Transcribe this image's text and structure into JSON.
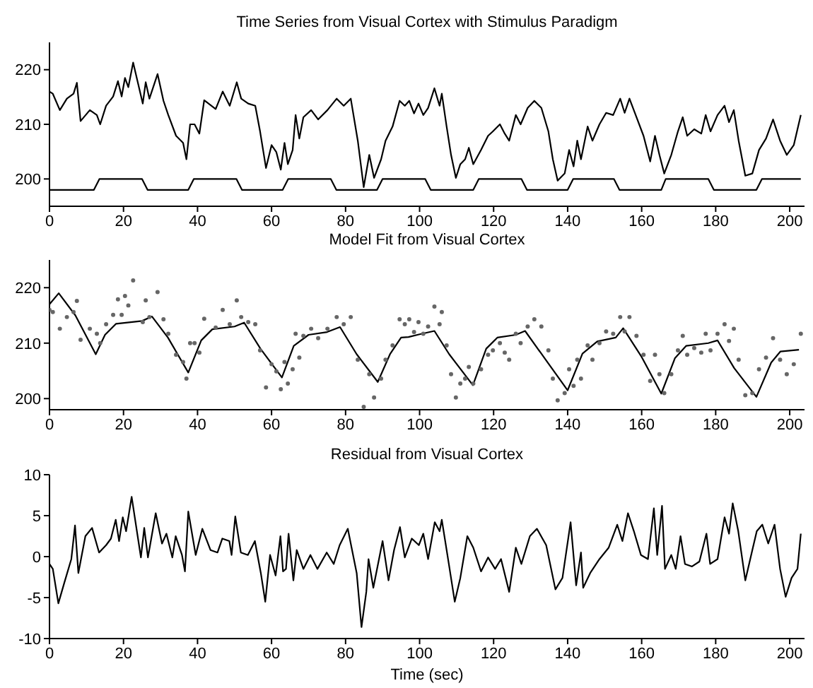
{
  "chart_data": [
    {
      "type": "line",
      "title": "Time Series from Visual Cortex with Stimulus Paradigm",
      "xlim": [
        0,
        204
      ],
      "xticks": [
        0,
        20,
        40,
        60,
        80,
        100,
        120,
        140,
        160,
        180,
        200
      ],
      "ylim": [
        195,
        225
      ],
      "yticks": [
        200,
        210,
        220
      ],
      "grid": false,
      "marker": "none",
      "line_style": "solid",
      "series": [
        {
          "color": "#000000",
          "x": [
            0,
            0.9,
            2.8,
            4.7,
            6.5,
            7.4,
            8.4,
            10.9,
            12.8,
            13.7,
            15.3,
            17.2,
            18.5,
            19.5,
            20.4,
            21.3,
            22.6,
            25.2,
            26,
            27,
            29.2,
            30.8,
            32.1,
            34.2,
            36.1,
            37,
            38,
            39.2,
            40.5,
            41.8,
            44.9,
            46.8,
            48.7,
            50.6,
            51.8,
            53.7,
            55.6,
            56.9,
            58.5,
            60,
            61.3,
            62.5,
            63.5,
            64.4,
            65.7,
            66.5,
            67.5,
            68.6,
            70.7,
            72.6,
            75.1,
            77.6,
            79.5,
            81.4,
            83.3,
            84.9,
            86.4,
            87.7,
            89.6,
            90.8,
            92.7,
            94.6,
            96,
            97.2,
            98.5,
            99.7,
            101,
            102.3,
            104,
            105.4,
            106,
            107.3,
            108.5,
            109.8,
            111,
            112.3,
            113.3,
            114.5,
            116.6,
            118.5,
            119.8,
            121.7,
            123,
            124.2,
            126,
            127.3,
            129.2,
            131,
            132.9,
            134.8,
            136,
            137.3,
            139.2,
            140.4,
            141.6,
            142.6,
            143.6,
            145.4,
            146.7,
            148.6,
            150.4,
            152.3,
            154.2,
            155.4,
            156.7,
            158.6,
            160.5,
            162.3,
            163.6,
            164.8,
            166.1,
            168,
            169.8,
            171.1,
            172.3,
            174.2,
            176.1,
            177.3,
            178.6,
            180.5,
            182.4,
            183.6,
            184.9,
            186.2,
            188,
            189.9,
            191.7,
            193.6,
            195.5,
            197.4,
            199.2,
            201.1,
            203
          ],
          "values": [
            216,
            215.6,
            212.6,
            214.7,
            215.6,
            217.6,
            210.6,
            212.6,
            211.7,
            210,
            213.4,
            215.1,
            217.9,
            215.1,
            218.5,
            216.8,
            221.3,
            213.8,
            217.7,
            214.7,
            219.2,
            214.3,
            211.7,
            207.9,
            206.6,
            203.6,
            210,
            210,
            208.3,
            214.4,
            212.8,
            216,
            213.4,
            217.7,
            214.7,
            213.8,
            213.4,
            208.7,
            202,
            206.2,
            204.9,
            201.7,
            206.6,
            202.7,
            205.3,
            211.7,
            207.4,
            211.3,
            212.6,
            210.9,
            212.6,
            214.7,
            213.4,
            214.7,
            207,
            198.5,
            204.4,
            200.2,
            203.6,
            207,
            209.6,
            214.3,
            213.4,
            214.3,
            212,
            213.8,
            211.7,
            213,
            216.6,
            213.4,
            215.6,
            209.6,
            204.4,
            200.2,
            202.7,
            203.6,
            205.7,
            202.7,
            205.3,
            207.9,
            208.7,
            210,
            208.3,
            207,
            211.7,
            210,
            213,
            214.3,
            213,
            208.7,
            203.6,
            199.7,
            201,
            205.3,
            202.3,
            207,
            203.6,
            209.6,
            207,
            210,
            212.1,
            211.7,
            214.7,
            212.1,
            214.7,
            211.3,
            207.9,
            203.2,
            207.9,
            204.4,
            201,
            204.4,
            208.7,
            211.3,
            207.9,
            209.1,
            208.3,
            211.7,
            208.7,
            211.7,
            213.4,
            210.4,
            212.6,
            207,
            200.6,
            201,
            205.3,
            207.4,
            210.9,
            207,
            204.4,
            206.2,
            211.7
          ]
        },
        {
          "color": "#000000",
          "x": [
            0,
            12,
            13.5,
            25,
            26.5,
            37.5,
            39,
            50.5,
            52,
            63,
            64.5,
            76,
            77.5,
            88.5,
            90,
            101.5,
            103,
            114.5,
            116,
            127.5,
            129,
            140,
            141.5,
            152.5,
            154,
            165.3,
            166.5,
            178,
            179.5,
            191,
            192.5,
            203
          ],
          "values": [
            198,
            198,
            200,
            200,
            198,
            198,
            200,
            200,
            198,
            198,
            200,
            200,
            198,
            198,
            200,
            200,
            198,
            198,
            200,
            200,
            198,
            198,
            200,
            200,
            198,
            198,
            200,
            200,
            198,
            198,
            200,
            200
          ]
        }
      ]
    },
    {
      "type": "line",
      "title": "Model Fit from Visual Cortex",
      "xlim": [
        0,
        204
      ],
      "xticks": [
        0,
        20,
        40,
        60,
        80,
        100,
        120,
        140,
        160,
        180,
        200
      ],
      "ylim": [
        198,
        225
      ],
      "yticks": [
        200,
        210,
        220
      ],
      "grid": false,
      "marker": "none",
      "line_style": "solid",
      "series": [
        {
          "type": "scatter",
          "marker": "circle",
          "color": "#666666",
          "x": [
            0,
            0.9,
            2.8,
            4.7,
            6.5,
            7.4,
            8.4,
            10.9,
            12.8,
            13.7,
            15.3,
            17.2,
            18.5,
            19.5,
            20.4,
            21.3,
            22.6,
            25.2,
            26,
            27,
            29.2,
            30.8,
            32.1,
            34.2,
            36.1,
            37,
            38,
            39.2,
            40.5,
            41.8,
            44.9,
            46.8,
            48.7,
            50.6,
            51.8,
            53.7,
            55.6,
            56.9,
            58.5,
            60,
            61.3,
            62.5,
            63.5,
            64.4,
            65.7,
            66.5,
            67.5,
            68.6,
            70.7,
            72.6,
            75.1,
            77.6,
            79.5,
            81.4,
            83.3,
            84.9,
            86.4,
            87.7,
            89.6,
            90.8,
            92.7,
            94.6,
            96,
            97.2,
            98.5,
            99.7,
            101,
            102.3,
            104,
            105.4,
            106,
            107.3,
            108.5,
            109.8,
            111,
            112.3,
            113.3,
            114.5,
            116.6,
            118.5,
            119.8,
            121.7,
            123,
            124.2,
            126,
            127.3,
            129.2,
            131,
            132.9,
            134.8,
            136,
            137.3,
            139.2,
            140.4,
            141.6,
            142.6,
            143.6,
            145.4,
            146.7,
            148.6,
            150.4,
            152.3,
            154.2,
            155.4,
            156.7,
            158.6,
            160.5,
            162.3,
            163.6,
            164.8,
            166.1,
            168,
            169.8,
            171.1,
            172.3,
            174.2,
            176.1,
            177.3,
            178.6,
            180.5,
            182.4,
            183.6,
            184.9,
            186.2,
            188,
            189.9,
            191.7,
            193.6,
            195.5,
            197.4,
            199.2,
            201.1,
            203
          ],
          "values": [
            216,
            215.6,
            212.6,
            214.7,
            215.6,
            217.6,
            210.6,
            212.6,
            211.7,
            210,
            213.4,
            215.1,
            217.9,
            215.1,
            218.5,
            216.8,
            221.3,
            213.8,
            217.7,
            214.7,
            219.2,
            214.3,
            211.7,
            207.9,
            206.6,
            203.6,
            210,
            210,
            208.3,
            214.4,
            212.8,
            216,
            213.4,
            217.7,
            214.7,
            213.8,
            213.4,
            208.7,
            202,
            206.2,
            204.9,
            201.7,
            206.6,
            202.7,
            205.3,
            211.7,
            207.4,
            211.3,
            212.6,
            210.9,
            212.6,
            214.7,
            213.4,
            214.7,
            207,
            198.5,
            204.4,
            200.2,
            203.6,
            207,
            209.6,
            214.3,
            213.4,
            214.3,
            212,
            213.8,
            211.7,
            213,
            216.6,
            213.4,
            215.6,
            209.6,
            204.4,
            200.2,
            202.7,
            203.6,
            205.7,
            202.7,
            205.3,
            207.9,
            208.7,
            210,
            208.3,
            207,
            211.7,
            210,
            213,
            214.3,
            213,
            208.7,
            203.6,
            199.7,
            201,
            205.3,
            202.3,
            207,
            203.6,
            209.6,
            207,
            210,
            212.1,
            211.7,
            214.7,
            212.1,
            214.7,
            211.3,
            207.9,
            203.2,
            207.9,
            204.4,
            201,
            204.4,
            208.7,
            211.3,
            207.9,
            209.1,
            208.3,
            211.7,
            208.7,
            211.7,
            213.4,
            210.4,
            212.6,
            207,
            200.6,
            201,
            205.3,
            207.4,
            210.9,
            207,
            204.4,
            206.2,
            211.7
          ]
        },
        {
          "color": "#000000",
          "x": [
            0,
            2.5,
            7,
            12.5,
            15,
            18,
            25,
            27.7,
            32,
            37.5,
            41,
            44,
            50,
            52.6,
            57,
            62.8,
            66,
            70,
            75,
            78.5,
            83,
            88.7,
            92,
            95,
            97,
            100,
            104,
            108,
            114.4,
            118,
            121,
            126,
            128.5,
            133,
            140,
            144,
            148,
            153,
            155,
            160,
            165.3,
            169,
            172,
            178,
            180.5,
            185,
            191,
            195,
            197.5,
            202.5
          ],
          "values": [
            217,
            219,
            215,
            208,
            211.5,
            213.5,
            214,
            214.8,
            211,
            204.7,
            210.5,
            212.5,
            213,
            213.7,
            209,
            203.8,
            209.5,
            211.5,
            212,
            212.9,
            208,
            203,
            208,
            211,
            211.1,
            211.6,
            212.2,
            208,
            202.4,
            209,
            211,
            211.5,
            212.2,
            208,
            201.5,
            208.1,
            210.3,
            211,
            212.7,
            207.5,
            200.9,
            207.3,
            209.5,
            210,
            210.5,
            205.5,
            200.3,
            206.5,
            208.5,
            208.8
          ]
        }
      ]
    },
    {
      "type": "line",
      "title": "Residual from Visual Cortex",
      "xlabel": "Time (sec)",
      "xlim": [
        0,
        204
      ],
      "xticks": [
        0,
        20,
        40,
        60,
        80,
        100,
        120,
        140,
        160,
        180,
        200
      ],
      "ylim": [
        -10,
        10
      ],
      "yticks": [
        -10,
        -5,
        0,
        5,
        10
      ],
      "grid": false,
      "marker": "none",
      "line_style": "solid",
      "series": [
        {
          "color": "#000000",
          "x": [
            0,
            0.9,
            2.4,
            4,
            5.9,
            6.9,
            7.8,
            9.7,
            11.5,
            13.4,
            15.3,
            16.6,
            17.9,
            18.8,
            19.8,
            20.7,
            22.2,
            24.7,
            25.6,
            26.6,
            28.7,
            30.4,
            31.6,
            33.2,
            34.1,
            35.8,
            36.6,
            37.5,
            39.5,
            41.3,
            43.5,
            45.4,
            46.7,
            48.6,
            49.2,
            50.2,
            51.7,
            53.6,
            55.5,
            57.1,
            58.3,
            59.6,
            61.1,
            62.4,
            63.1,
            63.9,
            64.6,
            65.9,
            66.8,
            68.6,
            70.5,
            72.4,
            74.9,
            76.8,
            78.4,
            80.6,
            83,
            84.3,
            85.6,
            86.2,
            87.5,
            90,
            91.6,
            93.1,
            94.7,
            96,
            97.9,
            99.8,
            101,
            102.3,
            104.1,
            105.4,
            106,
            107.9,
            109.5,
            111,
            112.9,
            114.5,
            116.6,
            118.5,
            120.4,
            122,
            124.2,
            126,
            127.5,
            129.8,
            131.7,
            134.2,
            136.7,
            138.6,
            140.8,
            142.3,
            143.6,
            144.2,
            146.1,
            148.6,
            151.1,
            153.4,
            154.8,
            156.3,
            157.9,
            159.8,
            161.7,
            163.3,
            164.2,
            165.5,
            166.3,
            168,
            169.2,
            170.5,
            171.7,
            173.6,
            175.6,
            177.5,
            178.5,
            180.5,
            182.4,
            183.6,
            184.6,
            186.1,
            188,
            189.9,
            191.1,
            192.6,
            194.2,
            195.9,
            197.4,
            198.9,
            200.5,
            202.1,
            203
          ],
          "values": [
            -0.9,
            -1.5,
            -5.7,
            -3.2,
            -0.3,
            3.8,
            -2,
            2.5,
            3.5,
            0.5,
            1.4,
            2.2,
            4.5,
            1.9,
            4.8,
            3.1,
            7.3,
            -0.1,
            3.5,
            -0.1,
            5.3,
            1.6,
            2.8,
            -0.1,
            2.5,
            0.2,
            -1.8,
            5.5,
            0.2,
            3.4,
            0.8,
            0.5,
            2.2,
            1.9,
            0.2,
            4.9,
            0.5,
            0.2,
            1.9,
            -2,
            -5.5,
            0.2,
            -2.3,
            2.5,
            -1.8,
            -1.5,
            2.8,
            -2.9,
            0.8,
            -1.5,
            0.2,
            -1.5,
            0.5,
            -0.9,
            1.4,
            3.4,
            -2,
            -8.6,
            -4.3,
            -0.3,
            -3.8,
            1.9,
            -2.9,
            0.8,
            3.6,
            -0.1,
            2.2,
            1.4,
            2.8,
            -0.3,
            4.2,
            3.1,
            4.5,
            -0.9,
            -5.5,
            -2.6,
            2.5,
            1.1,
            -1.8,
            -0.1,
            -1.5,
            -0.3,
            -4.3,
            1.1,
            -0.9,
            2.5,
            3.4,
            1.4,
            -4,
            -2.6,
            4.2,
            -3.5,
            0.5,
            -3.8,
            -2,
            -0.3,
            1.1,
            3.9,
            1.9,
            5.3,
            3.1,
            0.2,
            -0.3,
            5.9,
            0.2,
            6.2,
            -1.5,
            0.2,
            -1.5,
            2.5,
            -0.9,
            -1.2,
            -0.6,
            2.8,
            -0.9,
            -0.3,
            4.8,
            2.8,
            6.5,
            3.1,
            -2.9,
            0.8,
            3.1,
            3.9,
            1.6,
            3.9,
            -1.5,
            -4.9,
            -2.6,
            -1.5,
            2.8
          ]
        }
      ]
    }
  ]
}
